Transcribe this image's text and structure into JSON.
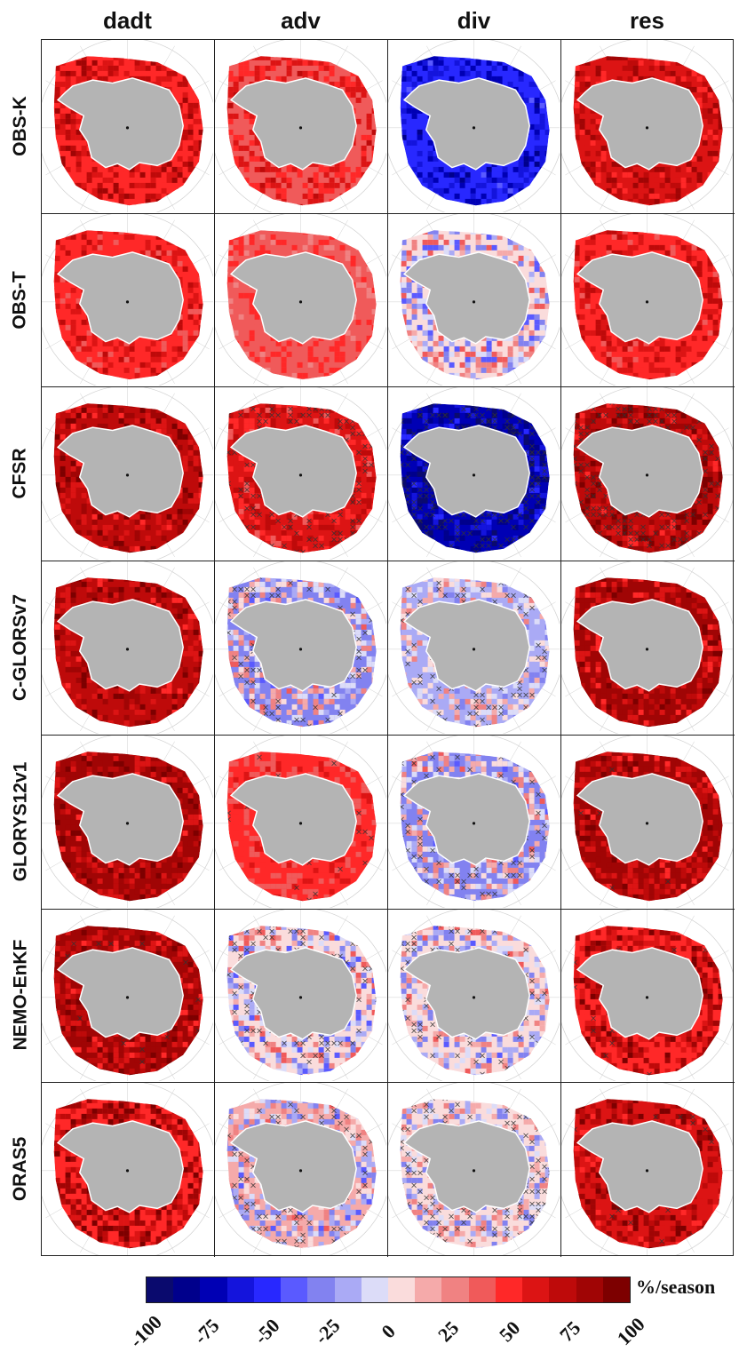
{
  "columns": [
    "dadt",
    "adv",
    "div",
    "res"
  ],
  "rows": [
    "OBS-K",
    "OBS-T",
    "CFSR",
    "C-GLORSv7",
    "GLORYS12v1",
    "NEMO-EnKF",
    "ORAS5"
  ],
  "colorbar": {
    "unit": "%/season",
    "ticks": [
      "-100",
      "-75",
      "-50",
      "-25",
      "0",
      "25",
      "50",
      "75",
      "100"
    ],
    "colors": [
      "#0a0a6e",
      "#00008c",
      "#0000b4",
      "#1414dc",
      "#2828ff",
      "#5a5aff",
      "#8282f0",
      "#aaaaf5",
      "#dcdcf8",
      "#fadcdc",
      "#f5aaaa",
      "#f08282",
      "#f05a5a",
      "#ff2828",
      "#dc1414",
      "#be0a0a",
      "#a00505",
      "#7d0000"
    ]
  },
  "colors": {
    "land": "#b4b4b4",
    "grid_line": "#d0d0d0",
    "hatch": "#333333"
  },
  "panels": [
    {
      "row": "OBS-K",
      "col": "dadt",
      "tone": "red",
      "strength": 0.75,
      "hatch": 0
    },
    {
      "row": "OBS-K",
      "col": "adv",
      "tone": "red",
      "strength": 0.55,
      "hatch": 0
    },
    {
      "row": "OBS-K",
      "col": "div",
      "tone": "blue",
      "strength": 0.7,
      "hatch": 0
    },
    {
      "row": "OBS-K",
      "col": "res",
      "tone": "red",
      "strength": 0.8,
      "hatch": 0
    },
    {
      "row": "OBS-T",
      "col": "dadt",
      "tone": "red",
      "strength": 0.6,
      "hatch": 0
    },
    {
      "row": "OBS-T",
      "col": "adv",
      "tone": "red",
      "strength": 0.35,
      "hatch": 0
    },
    {
      "row": "OBS-T",
      "col": "div",
      "tone": "mixed",
      "strength": 0.5,
      "hatch": 0
    },
    {
      "row": "OBS-T",
      "col": "res",
      "tone": "red",
      "strength": 0.65,
      "hatch": 0
    },
    {
      "row": "CFSR",
      "col": "dadt",
      "tone": "red",
      "strength": 0.95,
      "hatch": 0
    },
    {
      "row": "CFSR",
      "col": "adv",
      "tone": "red",
      "strength": 0.65,
      "hatch": 0.5
    },
    {
      "row": "CFSR",
      "col": "div",
      "tone": "blue",
      "strength": 0.95,
      "hatch": 0.8
    },
    {
      "row": "CFSR",
      "col": "res",
      "tone": "red",
      "strength": 0.95,
      "hatch": 0.8
    },
    {
      "row": "C-GLORSv7",
      "col": "dadt",
      "tone": "red",
      "strength": 0.95,
      "hatch": 0
    },
    {
      "row": "C-GLORSv7",
      "col": "adv",
      "tone": "mixed",
      "strength": 0.4,
      "hatch": 0.4
    },
    {
      "row": "C-GLORSv7",
      "col": "div",
      "tone": "mixed",
      "strength": 0.3,
      "hatch": 0.4
    },
    {
      "row": "C-GLORSv7",
      "col": "res",
      "tone": "red",
      "strength": 0.9,
      "hatch": 0
    },
    {
      "row": "GLORYS12v1",
      "col": "dadt",
      "tone": "red",
      "strength": 0.95,
      "hatch": 0
    },
    {
      "row": "GLORYS12v1",
      "col": "adv",
      "tone": "red",
      "strength": 0.45,
      "hatch": 0.1
    },
    {
      "row": "GLORYS12v1",
      "col": "div",
      "tone": "mixed",
      "strength": 0.4,
      "hatch": 0.3
    },
    {
      "row": "GLORYS12v1",
      "col": "res",
      "tone": "red",
      "strength": 0.9,
      "hatch": 0.1
    },
    {
      "row": "NEMO-EnKF",
      "col": "dadt",
      "tone": "red",
      "strength": 0.9,
      "hatch": 0.1
    },
    {
      "row": "NEMO-EnKF",
      "col": "adv",
      "tone": "mixed",
      "strength": 0.5,
      "hatch": 0.4
    },
    {
      "row": "NEMO-EnKF",
      "col": "div",
      "tone": "mixed",
      "strength": 0.4,
      "hatch": 0.3
    },
    {
      "row": "NEMO-EnKF",
      "col": "res",
      "tone": "red",
      "strength": 0.9,
      "hatch": 0.1
    },
    {
      "row": "ORAS5",
      "col": "dadt",
      "tone": "red",
      "strength": 0.95,
      "hatch": 0
    },
    {
      "row": "ORAS5",
      "col": "adv",
      "tone": "mixed",
      "strength": 0.4,
      "hatch": 0.4
    },
    {
      "row": "ORAS5",
      "col": "div",
      "tone": "mixed",
      "strength": 0.35,
      "hatch": 0.5
    },
    {
      "row": "ORAS5",
      "col": "res",
      "tone": "red",
      "strength": 0.9,
      "hatch": 0.1
    }
  ]
}
